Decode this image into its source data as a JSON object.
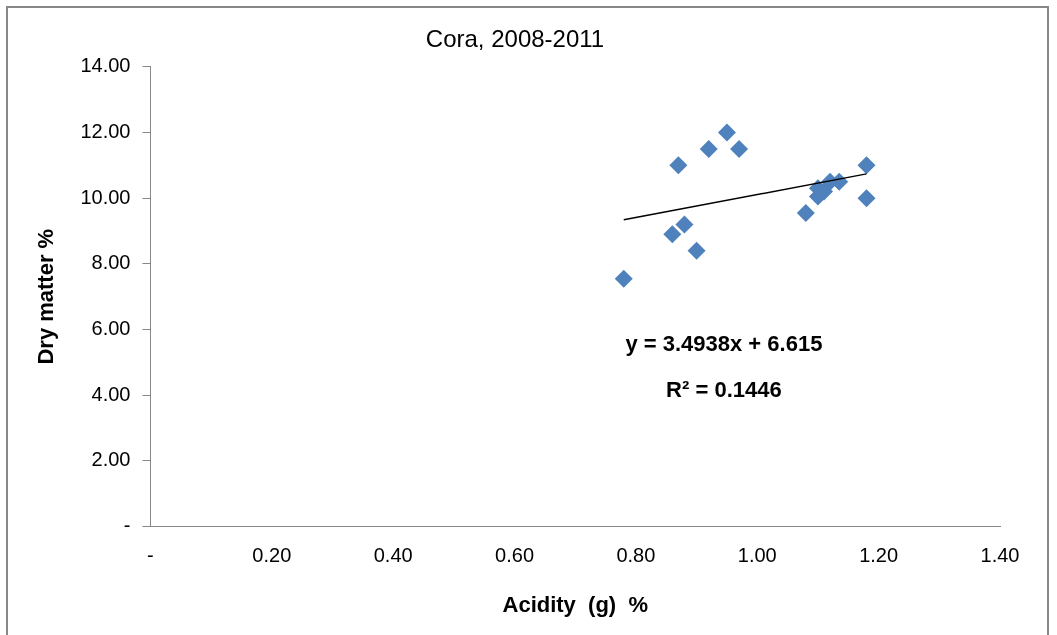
{
  "chart_data": {
    "type": "scatter",
    "title": "Cora, 2008-2011",
    "xlabel": "Acidity  (g)  %",
    "ylabel": "Dry matter %",
    "annotations": [
      "y = 3.4938x + 6.615",
      "R² = 0.1446"
    ],
    "marker": "diamond",
    "grid": false,
    "legend": false,
    "xlim": [
      0,
      1.4
    ],
    "ylim": [
      0,
      14
    ],
    "xticks": [
      {
        "value": 0,
        "label": "-"
      },
      {
        "value": 0.2,
        "label": "0.20"
      },
      {
        "value": 0.4,
        "label": "0.40"
      },
      {
        "value": 0.6,
        "label": "0.60"
      },
      {
        "value": 0.8,
        "label": "0.80"
      },
      {
        "value": 1.0,
        "label": "1.00"
      },
      {
        "value": 1.2,
        "label": "1.20"
      },
      {
        "value": 1.4,
        "label": "1.40"
      }
    ],
    "yticks": [
      {
        "value": 0,
        "label": "-"
      },
      {
        "value": 2,
        "label": "2.00"
      },
      {
        "value": 4,
        "label": "4.00"
      },
      {
        "value": 6,
        "label": "6.00"
      },
      {
        "value": 8,
        "label": "8.00"
      },
      {
        "value": 10,
        "label": "10.00"
      },
      {
        "value": 12,
        "label": "12.00"
      },
      {
        "value": 14,
        "label": "14.00"
      }
    ],
    "series": [
      {
        "color": "#4f81bd",
        "x": [
          0.78,
          0.87,
          0.92,
          0.95,
          0.97,
          0.86,
          0.88,
          0.9,
          1.08,
          1.1,
          1.1,
          1.11,
          1.12,
          1.135,
          1.18,
          1.18
        ],
        "values": [
          7.55,
          11.0,
          11.5,
          12.0,
          11.5,
          8.9,
          9.2,
          8.4,
          9.55,
          10.05,
          10.3,
          10.2,
          10.5,
          10.5,
          11.0,
          10.0
        ]
      },
      {
        "type": "line",
        "color": "#000000",
        "x": [
          0.78,
          1.18
        ],
        "values": [
          9.34,
          10.74
        ],
        "marker": "none"
      }
    ]
  }
}
